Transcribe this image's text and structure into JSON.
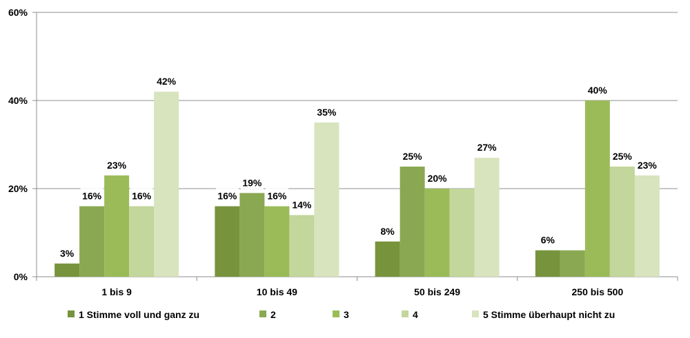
{
  "chart_data": {
    "type": "bar",
    "categories": [
      "1 bis 9",
      "10 bis 49",
      "50 bis 249",
      "250 bis 500"
    ],
    "series": [
      {
        "name": "1 Stimme voll und ganz zu",
        "values": [
          3,
          16,
          8,
          6
        ],
        "labels": [
          "3%",
          "16%",
          "8%",
          "6%"
        ],
        "color": "#77933c"
      },
      {
        "name": "2",
        "values": [
          16,
          19,
          25,
          6
        ],
        "labels": [
          "16%",
          "19%",
          "25%",
          ""
        ],
        "color": "#8aa852"
      },
      {
        "name": "3",
        "values": [
          23,
          16,
          20,
          40
        ],
        "labels": [
          "23%",
          "16%",
          "20%",
          "40%"
        ],
        "color": "#9bbb59"
      },
      {
        "name": "4",
        "values": [
          16,
          14,
          20,
          25
        ],
        "labels": [
          "16%",
          "14%",
          "",
          "25%"
        ],
        "color": "#c3d69b"
      },
      {
        "name": "5 Stimme überhaupt nicht zu",
        "values": [
          42,
          35,
          27,
          23
        ],
        "labels": [
          "42%",
          "35%",
          "27%",
          "23%"
        ],
        "color": "#d7e4bd"
      }
    ],
    "y_ticks": [
      "0%",
      "20%",
      "40%",
      "60%"
    ],
    "ylim": [
      0,
      60
    ],
    "grid": true,
    "legend_position": "bottom"
  }
}
